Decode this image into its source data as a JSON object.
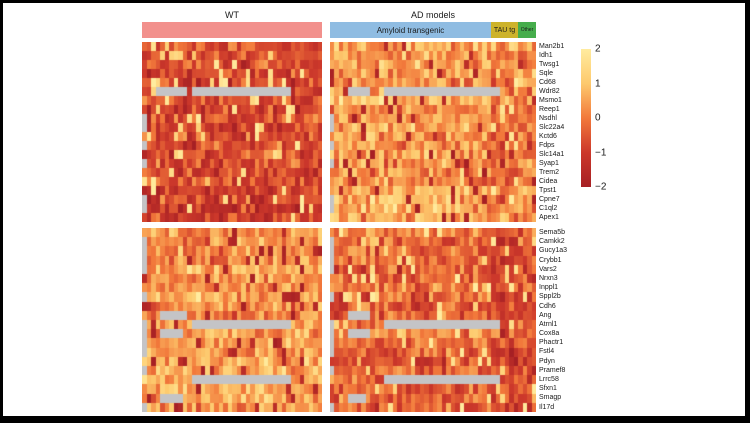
{
  "header": {
    "wt_title": "WT",
    "ad_title": "AD models",
    "amyloid_label": "Amyloid transgenic",
    "tau_label": "TAU tg",
    "other_label": "Other",
    "wt_bar_color": "#F2908C",
    "amyloid_bar_color": "#8FBCE2",
    "tau_bar_color": "#CDB32B",
    "other_bar_color": "#46AD4C"
  },
  "chart_data": {
    "type": "heatmap",
    "value_range": [
      -2,
      2
    ],
    "colorbar": {
      "ticks": [
        "2",
        "1",
        "0",
        "−1",
        "−2"
      ],
      "tick_values": [
        2,
        1,
        0,
        -1,
        -2
      ],
      "position": "right"
    },
    "palette_stops": [
      {
        "v": -2,
        "color": "#A62024"
      },
      {
        "v": -1,
        "color": "#CC382B"
      },
      {
        "v": 0,
        "color": "#F2793B"
      },
      {
        "v": 1,
        "color": "#FDC96D"
      },
      {
        "v": 2,
        "color": "#FFEC9F"
      }
    ],
    "missing_color": "#C4C4C6",
    "column_groups": [
      {
        "id": "wt",
        "label": "WT",
        "n": 40,
        "panel": "wt"
      },
      {
        "id": "amyloid",
        "label": "Amyloid transgenic",
        "n": 36,
        "panel": "ad"
      },
      {
        "id": "tau",
        "label": "TAU tg",
        "n": 6,
        "panel": "ad"
      },
      {
        "id": "other",
        "label": "Other",
        "n": 4,
        "panel": "ad"
      }
    ],
    "seed": 20240613,
    "blocks": [
      {
        "genes": [
          "Man2b1",
          "Idh1",
          "Twsg1",
          "Sqle",
          "Cd68",
          "Wdr82",
          "Msmo1",
          "Reep1",
          "Nsdhl",
          "Slc22a4",
          "Kctd6",
          "Fdps",
          "Slc14a1",
          "Syap1",
          "Trem2",
          "Cidea",
          "Tpst1",
          "Cpne7",
          "C1ql2",
          "Apex1"
        ],
        "group_means": {
          "wt": -0.75,
          "amyloid": 0.55,
          "tau": -0.2,
          "other": 0.3
        },
        "noise_spread": 1.65,
        "missing": {
          "wt": [
            {
              "row": 5,
              "from": 3,
              "to": 9
            },
            {
              "row": 5,
              "from": 11,
              "to": 32
            },
            {
              "row": 8,
              "from": 0,
              "to": 0
            },
            {
              "row": 9,
              "from": 0,
              "to": 0
            },
            {
              "row": 11,
              "from": 0,
              "to": 0
            },
            {
              "row": 13,
              "from": 0,
              "to": 0
            },
            {
              "row": 17,
              "from": 0,
              "to": 0
            },
            {
              "row": 18,
              "from": 0,
              "to": 0
            }
          ],
          "ad": [
            {
              "row": 5,
              "from": 4,
              "to": 8
            },
            {
              "row": 5,
              "from": 12,
              "to": 37
            },
            {
              "row": 8,
              "from": 0,
              "to": 0
            },
            {
              "row": 9,
              "from": 0,
              "to": 0
            },
            {
              "row": 11,
              "from": 0,
              "to": 0
            },
            {
              "row": 13,
              "from": 0,
              "to": 0
            },
            {
              "row": 17,
              "from": 0,
              "to": 0
            },
            {
              "row": 18,
              "from": 0,
              "to": 0
            }
          ]
        }
      },
      {
        "genes": [
          "Sema5b",
          "Camkk2",
          "Gucy1a3",
          "Crybb1",
          "Vars2",
          "Nrxn3",
          "Inppl1",
          "Sppl2b",
          "Cdh6",
          "Ang",
          "Atrnl1",
          "Cox8a",
          "Phactr1",
          "Fstl4",
          "Pdyn",
          "Pramef8",
          "Lrrc58",
          "Sfxn1",
          "Smagp",
          "Il17d"
        ],
        "group_means": {
          "wt": 0.4,
          "amyloid": -0.25,
          "tau": -0.8,
          "other": -0.55
        },
        "noise_spread": 1.55,
        "missing": {
          "wt": [
            {
              "row": 1,
              "from": 0,
              "to": 0
            },
            {
              "row": 2,
              "from": 0,
              "to": 0
            },
            {
              "row": 3,
              "from": 0,
              "to": 0
            },
            {
              "row": 4,
              "from": 0,
              "to": 0
            },
            {
              "row": 7,
              "from": 0,
              "to": 0
            },
            {
              "row": 9,
              "from": 4,
              "to": 9
            },
            {
              "row": 10,
              "from": 0,
              "to": 0
            },
            {
              "row": 10,
              "from": 11,
              "to": 32
            },
            {
              "row": 11,
              "from": 0,
              "to": 0
            },
            {
              "row": 11,
              "from": 4,
              "to": 8
            },
            {
              "row": 12,
              "from": 0,
              "to": 0
            },
            {
              "row": 13,
              "from": 0,
              "to": 0
            },
            {
              "row": 15,
              "from": 0,
              "to": 0
            },
            {
              "row": 16,
              "from": 11,
              "to": 32
            },
            {
              "row": 18,
              "from": 4,
              "to": 8
            },
            {
              "row": 19,
              "from": 0,
              "to": 0
            }
          ],
          "ad": [
            {
              "row": 1,
              "from": 0,
              "to": 0
            },
            {
              "row": 2,
              "from": 0,
              "to": 0
            },
            {
              "row": 3,
              "from": 0,
              "to": 0
            },
            {
              "row": 4,
              "from": 0,
              "to": 0
            },
            {
              "row": 7,
              "from": 0,
              "to": 0
            },
            {
              "row": 9,
              "from": 4,
              "to": 8
            },
            {
              "row": 10,
              "from": 0,
              "to": 0
            },
            {
              "row": 10,
              "from": 12,
              "to": 37
            },
            {
              "row": 11,
              "from": 0,
              "to": 0
            },
            {
              "row": 11,
              "from": 4,
              "to": 8
            },
            {
              "row": 12,
              "from": 0,
              "to": 0
            },
            {
              "row": 13,
              "from": 0,
              "to": 0
            },
            {
              "row": 15,
              "from": 0,
              "to": 0
            },
            {
              "row": 16,
              "from": 12,
              "to": 37
            },
            {
              "row": 18,
              "from": 4,
              "to": 7
            },
            {
              "row": 19,
              "from": 0,
              "to": 0
            }
          ]
        }
      }
    ]
  }
}
